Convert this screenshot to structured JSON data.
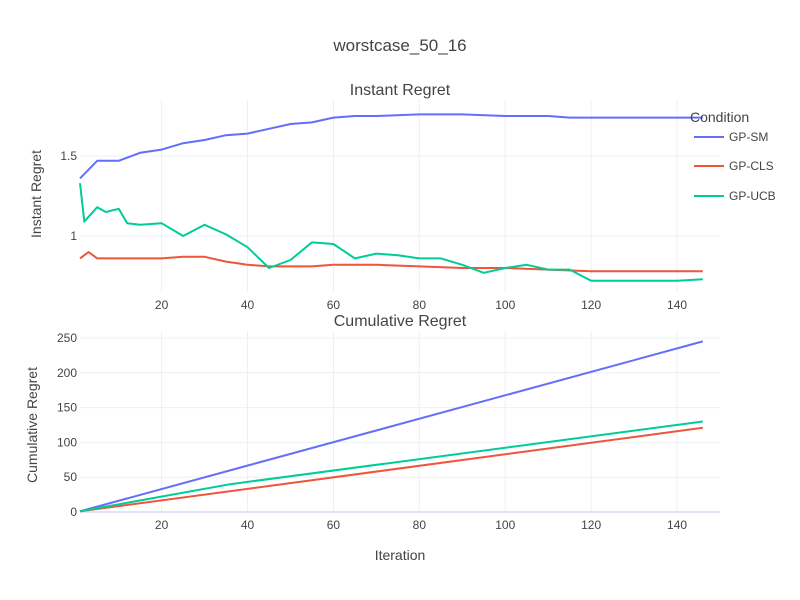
{
  "title": "worstcase_50_16",
  "legend": {
    "title": "Condition",
    "placement": "top-right",
    "items": [
      "GP-SM",
      "GP-CLS",
      "GP-UCB"
    ]
  },
  "colors": {
    "GP-SM": "#636efa",
    "GP-CLS": "#ef553b",
    "GP-UCB": "#00cc96",
    "grid": "#ebf0f8",
    "text": "#444444"
  },
  "chart_data": [
    {
      "type": "line",
      "title": "Instant Regret",
      "xlabel": "",
      "ylabel": "Instant Regret",
      "xlim": [
        1,
        150
      ],
      "ylim": [
        0.65,
        1.85
      ],
      "xticks": [
        20,
        40,
        60,
        80,
        100,
        120,
        140
      ],
      "yticks": [
        1,
        1.5
      ],
      "grid": true,
      "series": [
        {
          "name": "GP-SM",
          "color": "#636efa",
          "x": [
            1,
            5,
            10,
            15,
            20,
            25,
            30,
            35,
            40,
            45,
            50,
            55,
            60,
            65,
            70,
            80,
            90,
            100,
            110,
            115,
            120,
            130,
            140,
            146
          ],
          "y": [
            1.36,
            1.47,
            1.47,
            1.52,
            1.54,
            1.58,
            1.6,
            1.63,
            1.64,
            1.67,
            1.7,
            1.71,
            1.74,
            1.75,
            1.75,
            1.76,
            1.76,
            1.75,
            1.75,
            1.74,
            1.74,
            1.74,
            1.74,
            1.74
          ]
        },
        {
          "name": "GP-CLS",
          "color": "#ef553b",
          "x": [
            1,
            3,
            5,
            10,
            15,
            20,
            25,
            30,
            35,
            40,
            45,
            50,
            55,
            60,
            65,
            70,
            80,
            90,
            100,
            110,
            120,
            130,
            140,
            146
          ],
          "y": [
            0.86,
            0.9,
            0.86,
            0.86,
            0.86,
            0.86,
            0.87,
            0.87,
            0.84,
            0.82,
            0.81,
            0.81,
            0.81,
            0.82,
            0.82,
            0.82,
            0.81,
            0.8,
            0.8,
            0.79,
            0.78,
            0.78,
            0.78,
            0.78
          ]
        },
        {
          "name": "GP-UCB",
          "color": "#00cc96",
          "x": [
            1,
            2,
            5,
            7,
            10,
            12,
            15,
            20,
            25,
            30,
            35,
            40,
            45,
            50,
            55,
            60,
            65,
            70,
            75,
            80,
            85,
            90,
            95,
            100,
            105,
            110,
            115,
            120,
            125,
            130,
            135,
            140,
            146
          ],
          "y": [
            1.33,
            1.09,
            1.18,
            1.15,
            1.17,
            1.08,
            1.07,
            1.08,
            1.0,
            1.07,
            1.01,
            0.93,
            0.8,
            0.85,
            0.96,
            0.95,
            0.86,
            0.89,
            0.88,
            0.86,
            0.86,
            0.82,
            0.77,
            0.8,
            0.82,
            0.79,
            0.79,
            0.72,
            0.72,
            0.72,
            0.72,
            0.72,
            0.73
          ]
        }
      ]
    },
    {
      "type": "line",
      "title": "Cumulative Regret",
      "xlabel": "Iteration",
      "ylabel": "Cumulative Regret",
      "xlim": [
        1,
        150
      ],
      "ylim": [
        0,
        260
      ],
      "xticks": [
        20,
        40,
        60,
        80,
        100,
        120,
        140
      ],
      "yticks": [
        0,
        50,
        100,
        150,
        200,
        250
      ],
      "grid": true,
      "series": [
        {
          "name": "GP-SM",
          "color": "#636efa",
          "x": [
            1,
            146
          ],
          "y": [
            1,
            245
          ]
        },
        {
          "name": "GP-CLS",
          "color": "#ef553b",
          "x": [
            1,
            146
          ],
          "y": [
            1,
            121
          ]
        },
        {
          "name": "GP-UCB",
          "color": "#00cc96",
          "x": [
            1,
            36,
            146
          ],
          "y": [
            1,
            40,
            130
          ]
        }
      ]
    }
  ]
}
